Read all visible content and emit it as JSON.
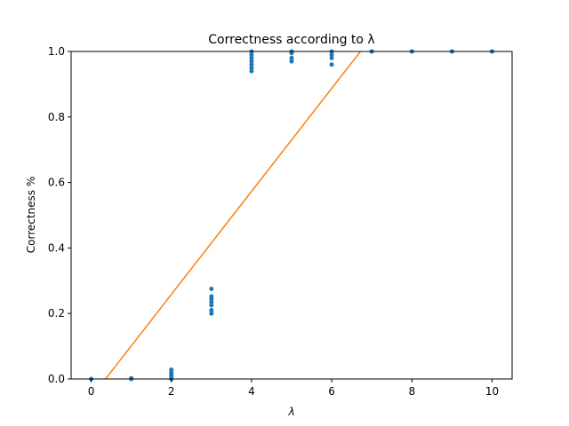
{
  "chart_data": {
    "type": "scatter",
    "title": "Correctness according to λ",
    "xlabel": "λ",
    "ylabel": "Correctness %",
    "xlim": [
      -0.5,
      10.5
    ],
    "ylim": [
      0,
      1.0
    ],
    "x_ticks": [
      0,
      2,
      4,
      6,
      8,
      10
    ],
    "x_tick_labels": [
      "0",
      "2",
      "4",
      "6",
      "8",
      "10"
    ],
    "y_ticks": [
      0,
      0.2,
      0.4,
      0.6,
      0.8,
      1.0
    ],
    "y_tick_labels": [
      "0.0",
      "0.2",
      "0.4",
      "0.6",
      "0.8",
      "1.0"
    ],
    "grid": false,
    "series": [
      {
        "kind": "scatter",
        "color": "#1f77b4",
        "points": [
          [
            0,
            0.0
          ],
          [
            1,
            0.0
          ],
          [
            1,
            0.002
          ],
          [
            2,
            0.0
          ],
          [
            2,
            0.005
          ],
          [
            2,
            0.01
          ],
          [
            2,
            0.015
          ],
          [
            2,
            0.02
          ],
          [
            2,
            0.028
          ],
          [
            3,
            0.2
          ],
          [
            3,
            0.21
          ],
          [
            3,
            0.225
          ],
          [
            3,
            0.235
          ],
          [
            3,
            0.245
          ],
          [
            3,
            0.252
          ],
          [
            3,
            0.275
          ],
          [
            4,
            0.94
          ],
          [
            4,
            0.95
          ],
          [
            4,
            0.96
          ],
          [
            4,
            0.97
          ],
          [
            4,
            0.98
          ],
          [
            4,
            0.99
          ],
          [
            4,
            1.0
          ],
          [
            5,
            0.97
          ],
          [
            5,
            0.98
          ],
          [
            5,
            0.995
          ],
          [
            5,
            1.0
          ],
          [
            6,
            0.96
          ],
          [
            6,
            0.98
          ],
          [
            6,
            0.99
          ],
          [
            6,
            1.0
          ],
          [
            7,
            1.0
          ],
          [
            8,
            1.0
          ],
          [
            9,
            1.0
          ],
          [
            10,
            1.0
          ]
        ]
      },
      {
        "kind": "line",
        "color": "#ff7f0e",
        "x": [
          -0.5,
          10.5
        ],
        "y": [
          -0.135,
          1.595
        ]
      }
    ]
  }
}
